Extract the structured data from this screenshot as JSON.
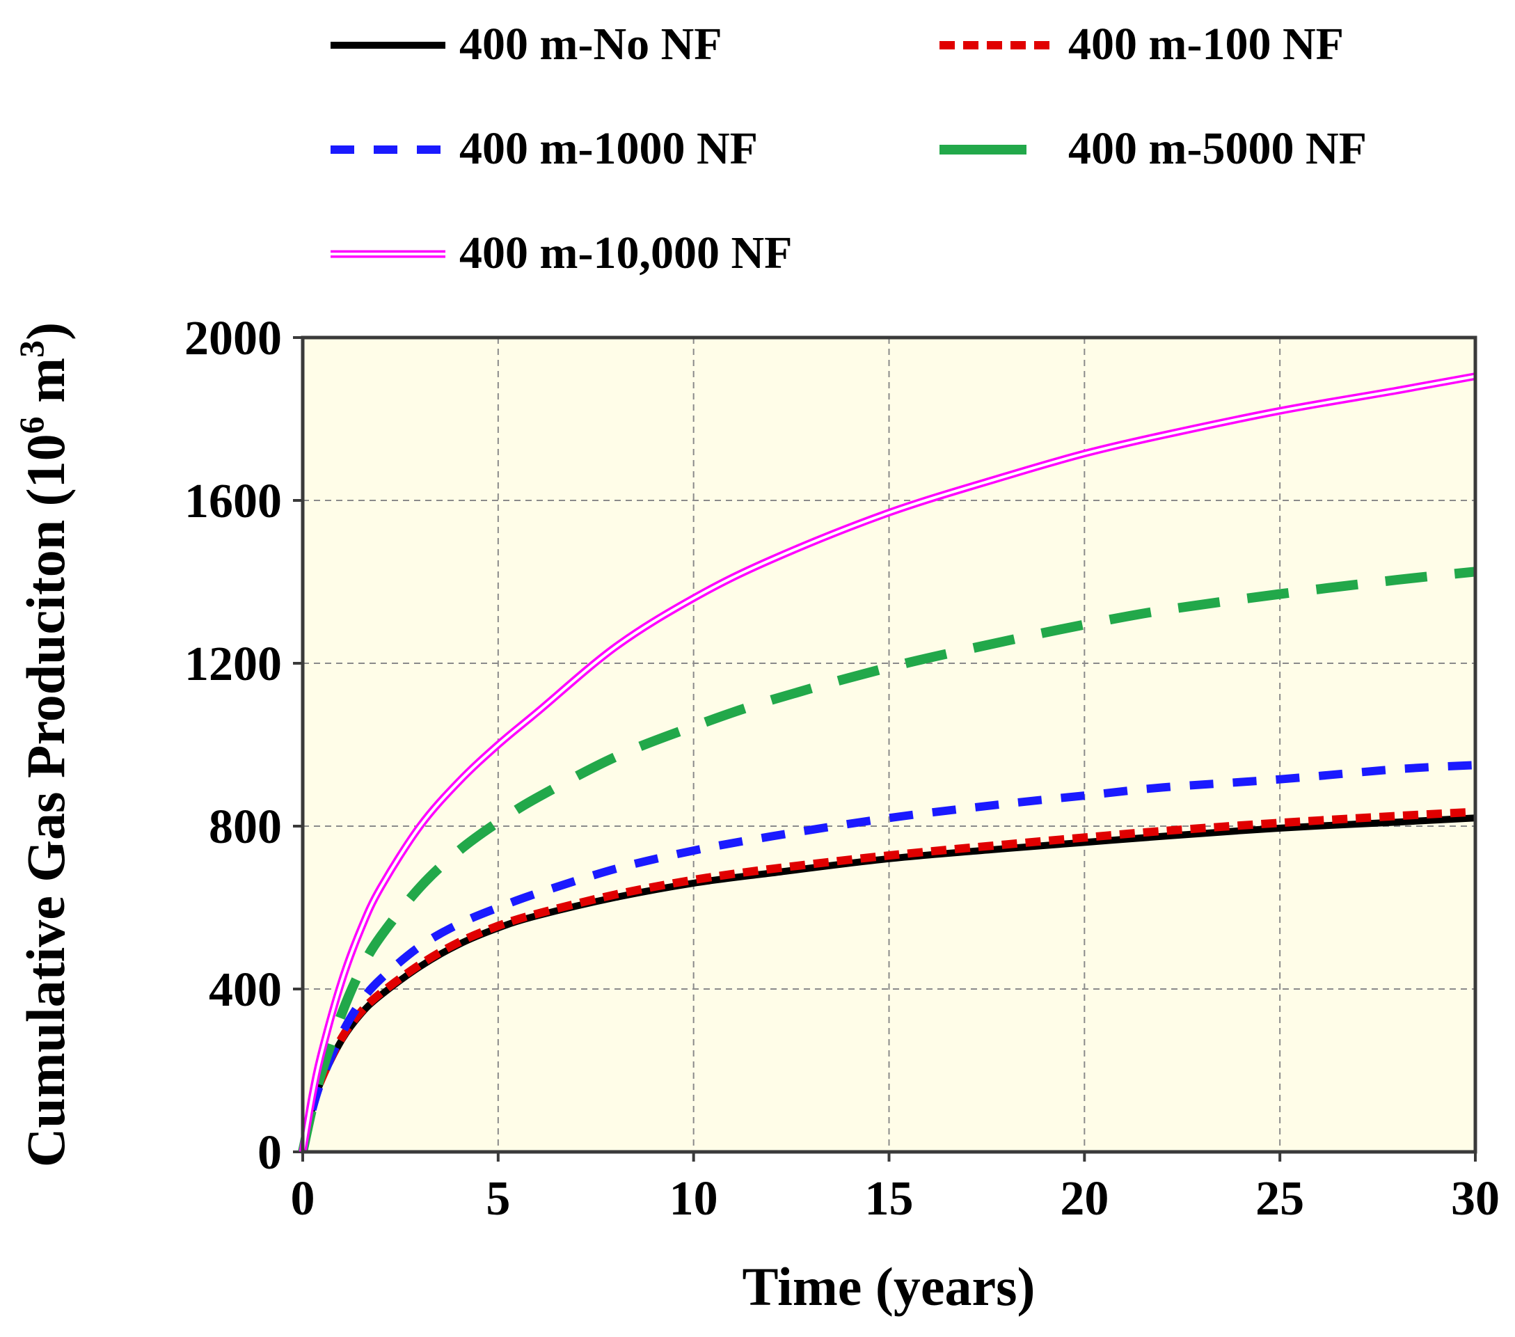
{
  "chart_data": {
    "type": "line",
    "title": "",
    "xlabel": "Time (years)",
    "ylabel_main": "Cumulative Gas Produciton (10",
    "ylabel_sup": "6",
    "ylabel_unit": " m",
    "ylabel_sup2": "3",
    "ylabel_close": ")",
    "xlim": [
      0,
      30
    ],
    "ylim": [
      0,
      2000
    ],
    "xticks": [
      0,
      5,
      10,
      15,
      20,
      25,
      30
    ],
    "yticks": [
      0,
      400,
      800,
      1200,
      1600,
      2000
    ],
    "grid": true,
    "plot_background": "#fffde8",
    "legend_position": "top",
    "series": [
      {
        "name": "400 m-No NF",
        "color": "#000000",
        "style": "solid",
        "x": [
          0,
          0.25,
          0.5,
          1,
          1.5,
          2,
          3,
          4,
          5,
          6,
          8,
          10,
          12,
          15,
          18,
          20,
          22,
          25,
          28,
          30
        ],
        "y": [
          0,
          110,
          180,
          275,
          340,
          385,
          455,
          510,
          550,
          580,
          625,
          660,
          685,
          720,
          745,
          760,
          775,
          795,
          810,
          820
        ]
      },
      {
        "name": "400 m-100 NF",
        "color": "#e00000",
        "style": "dashed",
        "x": [
          0,
          0.25,
          0.5,
          1,
          1.5,
          2,
          3,
          4,
          5,
          6,
          8,
          10,
          12,
          15,
          18,
          20,
          22,
          25,
          28,
          30
        ],
        "y": [
          0,
          112,
          183,
          280,
          345,
          390,
          460,
          515,
          555,
          585,
          632,
          668,
          695,
          728,
          755,
          772,
          788,
          808,
          825,
          835
        ]
      },
      {
        "name": "400 m-1000 NF",
        "color": "#1a1aff",
        "style": "dashed",
        "x": [
          0,
          0.25,
          0.5,
          1,
          1.5,
          2,
          3,
          4,
          5,
          6,
          8,
          10,
          12,
          15,
          18,
          20,
          22,
          25,
          28,
          30
        ],
        "y": [
          0,
          105,
          180,
          290,
          370,
          425,
          505,
          560,
          600,
          635,
          695,
          740,
          775,
          820,
          855,
          875,
          895,
          915,
          940,
          950
        ]
      },
      {
        "name": "400 m-5000 NF",
        "color": "#22a84a",
        "style": "longdash",
        "x": [
          0,
          0.25,
          0.5,
          1,
          1.5,
          2,
          3,
          4,
          5,
          6,
          8,
          10,
          12,
          15,
          18,
          20,
          22,
          25,
          28,
          30
        ],
        "y": [
          0,
          110,
          200,
          340,
          450,
          530,
          650,
          740,
          810,
          870,
          970,
          1045,
          1110,
          1190,
          1255,
          1295,
          1330,
          1370,
          1405,
          1425
        ]
      },
      {
        "name": "400 m-10,000 NF",
        "color": "#ff00ff",
        "style": "double",
        "x": [
          0,
          0.25,
          0.5,
          1,
          1.5,
          2,
          3,
          4,
          5,
          6,
          8,
          10,
          12,
          15,
          18,
          20,
          22,
          25,
          28,
          30
        ],
        "y": [
          0,
          140,
          250,
          420,
          550,
          650,
          800,
          910,
          1000,
          1080,
          1240,
          1360,
          1455,
          1570,
          1660,
          1715,
          1760,
          1820,
          1870,
          1905
        ]
      }
    ]
  }
}
